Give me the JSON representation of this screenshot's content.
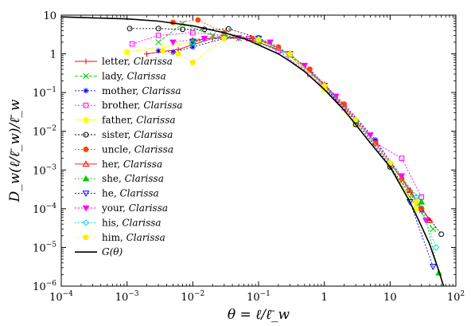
{
  "chart_data": {
    "type": "scatter",
    "xlabel": "θ = ℓ/ℓ̄_w",
    "ylabel": "D_w(ℓ/ℓ̄_w)/ℓ̄_w",
    "xscale": "log",
    "yscale": "log",
    "xlim": [
      0.0001,
      100
    ],
    "ylim": [
      1e-06,
      10
    ],
    "x_ticks": [
      {
        "value": 0.0001,
        "base": "10",
        "exp": "−4"
      },
      {
        "value": 0.001,
        "base": "10",
        "exp": "−3"
      },
      {
        "value": 0.01,
        "base": "10",
        "exp": "−2"
      },
      {
        "value": 0.1,
        "base": "10",
        "exp": "−1"
      },
      {
        "value": 1,
        "base": "1",
        "exp": ""
      },
      {
        "value": 10,
        "base": "10",
        "exp": ""
      },
      {
        "value": 100,
        "base": "10",
        "exp": "2"
      }
    ],
    "y_ticks": [
      {
        "value": 1e-06,
        "base": "10",
        "exp": "−6"
      },
      {
        "value": 1e-05,
        "base": "10",
        "exp": "−5"
      },
      {
        "value": 0.0001,
        "base": "10",
        "exp": "−4"
      },
      {
        "value": 0.001,
        "base": "10",
        "exp": "−3"
      },
      {
        "value": 0.01,
        "base": "10",
        "exp": "−2"
      },
      {
        "value": 0.1,
        "base": "10",
        "exp": "−1"
      },
      {
        "value": 1,
        "base": "1",
        "exp": ""
      },
      {
        "value": 10,
        "base": "10",
        "exp": ""
      }
    ],
    "legend_position": "left",
    "grid": false,
    "series": [
      {
        "name": "letter",
        "book": "Clarissa",
        "color": "#ff0000",
        "marker": "plus",
        "dash": "none",
        "points": [
          [
            0.002,
            1.0
          ],
          [
            0.006,
            1.3
          ],
          [
            0.02,
            2.5
          ],
          [
            0.05,
            2.6
          ],
          [
            0.1,
            2.0
          ],
          [
            0.3,
            1.0
          ],
          [
            1,
            0.15
          ],
          [
            3,
            0.02
          ],
          [
            10,
            0.0015
          ],
          [
            20,
            0.0003
          ],
          [
            40,
            5e-05
          ]
        ]
      },
      {
        "name": "lady",
        "book": "Clarissa",
        "color": "#00cc00",
        "marker": "x",
        "dash": "4,2",
        "points": [
          [
            0.003,
            2.0
          ],
          [
            0.007,
            6.0
          ],
          [
            0.02,
            3.0
          ],
          [
            0.05,
            2.5
          ],
          [
            0.1,
            2.0
          ],
          [
            0.3,
            0.9
          ],
          [
            1,
            0.13
          ],
          [
            3,
            0.015
          ],
          [
            10,
            0.0012
          ],
          [
            20,
            0.0002
          ],
          [
            45,
            3e-05
          ]
        ]
      },
      {
        "name": "mother",
        "book": "Clarissa",
        "color": "#0000ff",
        "marker": "star",
        "dash": "2,2",
        "points": [
          [
            0.003,
            1.2
          ],
          [
            0.005,
            1.1
          ],
          [
            0.01,
            1.5
          ],
          [
            0.03,
            2.5
          ],
          [
            0.08,
            2.5
          ],
          [
            0.2,
            1.5
          ],
          [
            0.6,
            0.4
          ],
          [
            2,
            0.05
          ],
          [
            6,
            0.006
          ],
          [
            15,
            0.0006
          ],
          [
            30,
            9e-05
          ]
        ]
      },
      {
        "name": "brother",
        "book": "Clarissa",
        "color": "#ff00ff",
        "marker": "square",
        "dash": "2,2",
        "points": [
          [
            0.0012,
            1.8
          ],
          [
            0.003,
            3.0
          ],
          [
            0.01,
            3.5
          ],
          [
            0.03,
            3.0
          ],
          [
            0.07,
            2.5
          ],
          [
            0.2,
            1.2
          ],
          [
            0.6,
            0.3
          ],
          [
            2,
            0.04
          ],
          [
            6,
            0.005
          ],
          [
            15,
            0.002
          ],
          [
            30,
            0.0002
          ]
        ]
      },
      {
        "name": "father",
        "book": "Clarissa",
        "color": "#ffff00",
        "marker": "square-filled",
        "dash": "none",
        "points": [
          [
            0.001,
            1.1
          ],
          [
            0.01,
            2.0
          ],
          [
            0.03,
            2.8
          ],
          [
            0.1,
            2.5
          ],
          [
            0.3,
            1.0
          ],
          [
            1,
            0.12
          ],
          [
            3,
            0.015
          ],
          [
            10,
            0.0012
          ],
          [
            25,
            0.0001
          ]
        ]
      },
      {
        "name": "sister",
        "book": "Clarissa",
        "color": "#000000",
        "marker": "circle",
        "dash": "2,2",
        "points": [
          [
            0.0011,
            4.5
          ],
          [
            0.003,
            4.5
          ],
          [
            0.007,
            4.3
          ],
          [
            0.015,
            4.3
          ],
          [
            0.035,
            4.4
          ],
          [
            0.1,
            2.6
          ],
          [
            0.3,
            1.0
          ],
          [
            1,
            0.15
          ],
          [
            3,
            0.015
          ],
          [
            10,
            0.0012
          ],
          [
            30,
            0.0001
          ],
          [
            60,
            2.2e-05
          ]
        ]
      },
      {
        "name": "uncle",
        "book": "Clarissa",
        "color": "#ff4400",
        "marker": "circle-filled",
        "dash": "2,2",
        "points": [
          [
            0.005,
            6.5
          ],
          [
            0.012,
            7.5
          ],
          [
            0.03,
            3.5
          ],
          [
            0.08,
            2.5
          ],
          [
            0.2,
            1.5
          ],
          [
            0.6,
            0.4
          ],
          [
            2,
            0.05
          ],
          [
            6,
            0.005
          ],
          [
            15,
            0.0006
          ],
          [
            30,
            0.0001
          ]
        ]
      },
      {
        "name": "her",
        "book": "Clarissa",
        "color": "#ff0000",
        "marker": "triangle",
        "dash": "none",
        "points": [
          [
            0.01,
            2.2
          ],
          [
            0.03,
            2.8
          ],
          [
            0.1,
            2.4
          ],
          [
            0.3,
            1.0
          ],
          [
            1,
            0.16
          ],
          [
            3,
            0.02
          ],
          [
            10,
            0.0015
          ],
          [
            20,
            0.0003
          ],
          [
            40,
            5e-05
          ]
        ]
      },
      {
        "name": "she",
        "book": "Clarissa",
        "color": "#00cc00",
        "marker": "triangle-filled",
        "dash": "2,2",
        "points": [
          [
            0.01,
            2.0
          ],
          [
            0.03,
            2.7
          ],
          [
            0.1,
            2.3
          ],
          [
            0.3,
            1.0
          ],
          [
            1,
            0.15
          ],
          [
            3,
            0.02
          ],
          [
            10,
            0.0015
          ],
          [
            30,
            0.00015
          ],
          [
            55,
            2.2e-06
          ]
        ]
      },
      {
        "name": "he",
        "book": "Clarissa",
        "color": "#0000ff",
        "marker": "triangle-down",
        "dash": "2,2",
        "points": [
          [
            0.01,
            2.1
          ],
          [
            0.03,
            2.6
          ],
          [
            0.1,
            2.5
          ],
          [
            0.3,
            1.0
          ],
          [
            1,
            0.15
          ],
          [
            3,
            0.018
          ],
          [
            10,
            0.0013
          ],
          [
            20,
            0.00015
          ],
          [
            45,
            3.2e-06
          ]
        ]
      },
      {
        "name": "your",
        "book": "Clarissa",
        "color": "#ff00ff",
        "marker": "triangle-down-filled",
        "dash": "2,2",
        "points": [
          [
            0.005,
            2.0
          ],
          [
            0.015,
            2.5
          ],
          [
            0.05,
            2.6
          ],
          [
            0.15,
            2.0
          ],
          [
            0.5,
            0.5
          ],
          [
            1.5,
            0.08
          ],
          [
            5,
            0.008
          ],
          [
            15,
            0.0007
          ],
          [
            35,
            5e-05
          ]
        ]
      },
      {
        "name": "his",
        "book": "Clarissa",
        "color": "#00dddd",
        "marker": "diamond",
        "dash": "2,2",
        "points": [
          [
            0.01,
            2.0
          ],
          [
            0.03,
            2.8
          ],
          [
            0.1,
            2.5
          ],
          [
            0.3,
            1.0
          ],
          [
            1,
            0.15
          ],
          [
            3,
            0.02
          ],
          [
            10,
            0.0015
          ],
          [
            25,
            0.0002
          ],
          [
            50,
            1e-05
          ]
        ]
      },
      {
        "name": "him",
        "book": "Clarissa",
        "color": "#ffee00",
        "marker": "pentagon-filled",
        "dash": "2,2",
        "points": [
          [
            0.0035,
            1.2
          ],
          [
            0.006,
            1.0
          ],
          [
            0.01,
            0.6
          ],
          [
            0.03,
            2.5
          ],
          [
            0.1,
            2.3
          ],
          [
            0.3,
            1.0
          ],
          [
            1,
            0.15
          ],
          [
            3,
            0.02
          ],
          [
            10,
            0.0015
          ],
          [
            25,
            0.00015
          ]
        ]
      }
    ],
    "curve": {
      "name": "G(θ)",
      "color": "#000000",
      "points": [
        [
          0.0001,
          9.0
        ],
        [
          0.0003,
          8.5
        ],
        [
          0.001,
          8.0
        ],
        [
          0.003,
          7.0
        ],
        [
          0.01,
          5.3
        ],
        [
          0.03,
          3.5
        ],
        [
          0.06,
          2.5
        ],
        [
          0.1,
          1.7
        ],
        [
          0.2,
          1.0
        ],
        [
          0.3,
          0.65
        ],
        [
          0.5,
          0.35
        ],
        [
          1,
          0.12
        ],
        [
          2,
          0.035
        ],
        [
          3,
          0.015
        ],
        [
          5,
          0.005
        ],
        [
          10,
          0.0012
        ],
        [
          20,
          0.00015
        ],
        [
          30,
          3.5e-05
        ],
        [
          40,
          1.2e-05
        ],
        [
          55,
          2.5e-06
        ],
        [
          65,
          1e-06
        ]
      ]
    }
  }
}
